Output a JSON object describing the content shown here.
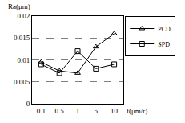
{
  "chart_data": {
    "type": "line",
    "xlabel": "f(μm/r)",
    "ylabel": "Ra(μm)",
    "categories": [
      "0.1",
      "0.5",
      "1",
      "5",
      "10"
    ],
    "series": [
      {
        "name": "PCD",
        "color": "#000000",
        "marker": "triangle",
        "values": [
          0.0095,
          0.0075,
          0.007,
          0.013,
          0.016
        ]
      },
      {
        "name": "SPD",
        "color": "#000000",
        "marker": "square",
        "values": [
          0.009,
          0.007,
          0.012,
          0.008,
          0.009
        ]
      }
    ],
    "ylim": [
      0,
      0.02
    ],
    "yticks": [
      0,
      0.005,
      0.01,
      0.015,
      0.02
    ],
    "grid": true,
    "legend": "right"
  }
}
